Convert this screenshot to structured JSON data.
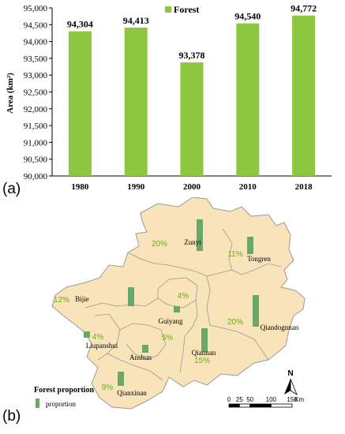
{
  "panel_a": {
    "label": "(a)",
    "chart_data": {
      "type": "bar",
      "categories": [
        "1980",
        "1990",
        "2000",
        "2010",
        "2018"
      ],
      "series": [
        {
          "name": "Forest",
          "values": [
            94304,
            94413,
            93378,
            94540,
            94772
          ],
          "color": "#8dc63f"
        }
      ],
      "value_labels": [
        "94,304",
        "94,413",
        "93,378",
        "94,540",
        "94,772"
      ],
      "ylabel": "Area (km²)",
      "ylim": [
        90000,
        95000
      ],
      "yticks": [
        "90,000",
        "90,500",
        "91,000",
        "91,500",
        "92,000",
        "92,500",
        "93,000",
        "93,500",
        "94,000",
        "94,500",
        "95,000"
      ],
      "grid": false,
      "legend": "top-center"
    }
  },
  "panel_b": {
    "label": "(b)",
    "map_color": "#f9e3b8",
    "bar_color": "#6aa86a",
    "regions": [
      {
        "name": "Zunyi",
        "percent": "20%",
        "share": 0.2
      },
      {
        "name": "Tongren",
        "percent": "11%",
        "share": 0.11
      },
      {
        "name": "Bijie",
        "percent": "12%",
        "share": 0.12
      },
      {
        "name": "Guiyang",
        "percent": "4%",
        "share": 0.04
      },
      {
        "name": "Qiandognnan",
        "percent": "20%",
        "share": 0.2
      },
      {
        "name": "Liupanshui",
        "percent": "4%",
        "share": 0.04
      },
      {
        "name": "Anshun",
        "percent": "5%",
        "share": 0.05
      },
      {
        "name": "Qiannan",
        "percent": "15%",
        "share": 0.15
      },
      {
        "name": "Qianxinan",
        "percent": "9%",
        "share": 0.09
      }
    ],
    "legend_title": "Forest proportion",
    "legend_item": "proportion",
    "north_label": "N",
    "scale_ticks": [
      "0",
      "25",
      "50",
      "100",
      "150"
    ],
    "scale_unit": "Km"
  }
}
